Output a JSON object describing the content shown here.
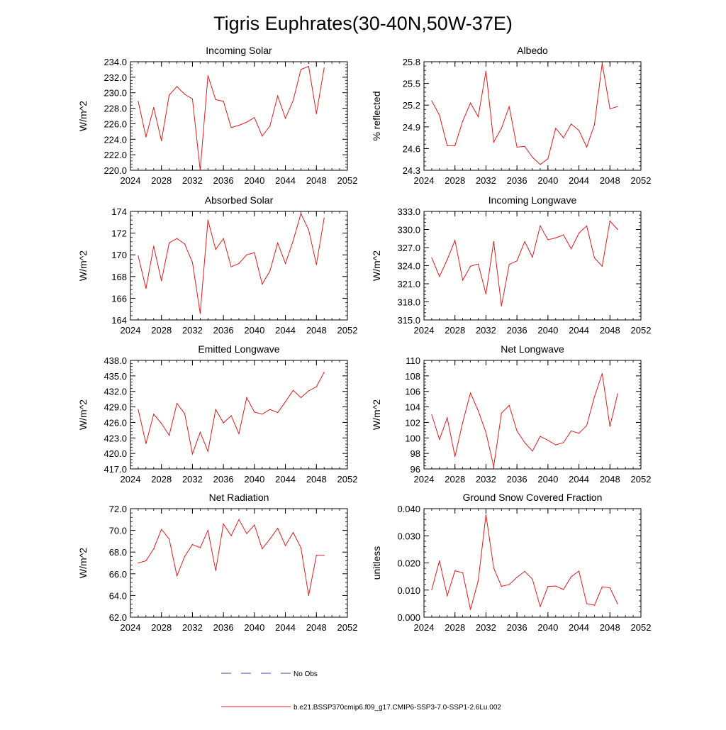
{
  "figure": {
    "title": "Tigris Euphrates(30-40N,50W-37E)",
    "line_color": "#e41a1c",
    "obs_color": "#4a4aa8"
  },
  "legend": {
    "obs_label": "No Obs",
    "model_label": "b.e21.BSSP370cmip6.f09_g17.CMIP6-SSP3-7.0-SSP1-2.6Lu.002"
  },
  "chart_data": [
    {
      "type": "line",
      "title": "Incoming Solar",
      "ylabel": "W/m^2",
      "xlim": [
        2024,
        2052
      ],
      "xticks": [
        2024,
        2028,
        2032,
        2036,
        2040,
        2044,
        2048,
        2052
      ],
      "ylim": [
        220,
        234
      ],
      "yticks": [
        "220.0",
        "222.0",
        "224.0",
        "226.0",
        "228.0",
        "230.0",
        "232.0",
        "234.0"
      ],
      "x": [
        2025,
        2026,
        2027,
        2028,
        2029,
        2030,
        2031,
        2032,
        2033,
        2034,
        2035,
        2036,
        2037,
        2038,
        2039,
        2040,
        2041,
        2042,
        2043,
        2044,
        2045,
        2046,
        2047,
        2048,
        2049
      ],
      "y": [
        228.9,
        224.3,
        228.1,
        223.8,
        229.7,
        230.8,
        229.8,
        229.2,
        220.0,
        232.2,
        229.1,
        228.9,
        225.5,
        225.8,
        226.2,
        226.8,
        224.4,
        225.7,
        229.6,
        226.7,
        229.0,
        233.0,
        233.4,
        227.3,
        233.2
      ]
    },
    {
      "type": "line",
      "title": "Albedo",
      "ylabel": "% reflected",
      "xlim": [
        2024,
        2052
      ],
      "xticks": [
        2024,
        2028,
        2032,
        2036,
        2040,
        2044,
        2048,
        2052
      ],
      "ylim": [
        24.3,
        25.8
      ],
      "yticks": [
        "24.3",
        "24.6",
        "24.9",
        "25.2",
        "25.5",
        "25.8"
      ],
      "x": [
        2025,
        2026,
        2027,
        2028,
        2029,
        2030,
        2031,
        2032,
        2033,
        2034,
        2035,
        2036,
        2037,
        2038,
        2039,
        2040,
        2041,
        2042,
        2043,
        2044,
        2045,
        2046,
        2047,
        2048,
        2049
      ],
      "y": [
        25.26,
        25.06,
        24.64,
        24.64,
        24.98,
        25.23,
        25.04,
        25.67,
        24.69,
        24.88,
        25.18,
        24.62,
        24.63,
        24.48,
        24.38,
        24.46,
        24.88,
        24.75,
        24.94,
        24.85,
        24.62,
        24.93,
        25.78,
        25.15,
        25.18
      ]
    },
    {
      "type": "line",
      "title": "Absorbed Solar",
      "ylabel": "W/m^2",
      "xlim": [
        2024,
        2052
      ],
      "xticks": [
        2024,
        2028,
        2032,
        2036,
        2040,
        2044,
        2048,
        2052
      ],
      "ylim": [
        164,
        174
      ],
      "yticks": [
        "164",
        "166",
        "168",
        "170",
        "172",
        "174"
      ],
      "x": [
        2025,
        2026,
        2027,
        2028,
        2029,
        2030,
        2031,
        2032,
        2033,
        2034,
        2035,
        2036,
        2037,
        2038,
        2039,
        2040,
        2041,
        2042,
        2043,
        2044,
        2045,
        2046,
        2047,
        2048,
        2049
      ],
      "y": [
        169.9,
        166.9,
        170.8,
        167.6,
        171.1,
        171.5,
        171.0,
        169.3,
        164.6,
        173.2,
        170.5,
        171.5,
        168.9,
        169.2,
        170.0,
        170.2,
        167.3,
        168.5,
        171.1,
        169.2,
        171.3,
        173.8,
        172.3,
        169.1,
        173.4
      ]
    },
    {
      "type": "line",
      "title": "Incoming Longwave",
      "ylabel": "W/m^2",
      "xlim": [
        2024,
        2052
      ],
      "xticks": [
        2024,
        2028,
        2032,
        2036,
        2040,
        2044,
        2048,
        2052
      ],
      "ylim": [
        315,
        333
      ],
      "yticks": [
        "315.0",
        "318.0",
        "321.0",
        "324.0",
        "327.0",
        "330.0",
        "333.0"
      ],
      "x": [
        2025,
        2026,
        2027,
        2028,
        2029,
        2030,
        2031,
        2032,
        2033,
        2034,
        2035,
        2036,
        2037,
        2038,
        2039,
        2040,
        2041,
        2042,
        2043,
        2044,
        2045,
        2046,
        2047,
        2048,
        2049
      ],
      "y": [
        325.3,
        322.2,
        325.0,
        328.2,
        321.6,
        323.9,
        324.3,
        319.3,
        328.0,
        317.3,
        324.2,
        324.8,
        328.0,
        325.4,
        330.6,
        328.3,
        328.6,
        329.1,
        326.8,
        329.4,
        330.6,
        325.3,
        323.9,
        331.4,
        330.0
      ]
    },
    {
      "type": "line",
      "title": "Emitted Longwave",
      "ylabel": "W/m^2",
      "xlim": [
        2024,
        2052
      ],
      "xticks": [
        2024,
        2028,
        2032,
        2036,
        2040,
        2044,
        2048,
        2052
      ],
      "ylim": [
        417,
        438
      ],
      "yticks": [
        "417.0",
        "420.0",
        "423.0",
        "426.0",
        "429.0",
        "432.0",
        "435.0",
        "438.0"
      ],
      "x": [
        2025,
        2026,
        2027,
        2028,
        2029,
        2030,
        2031,
        2032,
        2033,
        2034,
        2035,
        2036,
        2037,
        2038,
        2039,
        2040,
        2041,
        2042,
        2043,
        2044,
        2045,
        2046,
        2047,
        2048,
        2049
      ],
      "y": [
        428.5,
        421.9,
        427.6,
        425.8,
        423.5,
        429.7,
        427.7,
        419.9,
        424.1,
        420.4,
        428.5,
        425.9,
        427.3,
        423.8,
        430.8,
        428.0,
        427.6,
        428.5,
        427.9,
        430.0,
        432.2,
        430.8,
        432.1,
        432.9,
        435.7
      ]
    },
    {
      "type": "line",
      "title": "Net Longwave",
      "ylabel": "W/m^2",
      "xlim": [
        2024,
        2052
      ],
      "xticks": [
        2024,
        2028,
        2032,
        2036,
        2040,
        2044,
        2048,
        2052
      ],
      "ylim": [
        96,
        110
      ],
      "yticks": [
        "96",
        "98",
        "100",
        "102",
        "104",
        "106",
        "108",
        "110"
      ],
      "x": [
        2025,
        2026,
        2027,
        2028,
        2029,
        2030,
        2031,
        2032,
        2033,
        2034,
        2035,
        2036,
        2037,
        2038,
        2039,
        2040,
        2041,
        2042,
        2043,
        2044,
        2045,
        2046,
        2047,
        2048,
        2049
      ],
      "y": [
        103.0,
        99.8,
        102.6,
        97.6,
        102.0,
        105.8,
        103.5,
        100.7,
        96.3,
        103.2,
        104.2,
        100.9,
        99.4,
        98.3,
        100.2,
        99.7,
        99.1,
        99.4,
        100.9,
        100.6,
        101.6,
        105.3,
        108.3,
        101.5,
        105.7
      ]
    },
    {
      "type": "line",
      "title": "Net Radiation",
      "ylabel": "W/m^2",
      "xlim": [
        2024,
        2052
      ],
      "xticks": [
        2024,
        2028,
        2032,
        2036,
        2040,
        2044,
        2048,
        2052
      ],
      "ylim": [
        62,
        72
      ],
      "yticks": [
        "62.0",
        "64.0",
        "66.0",
        "68.0",
        "70.0",
        "72.0"
      ],
      "x": [
        2025,
        2026,
        2027,
        2028,
        2029,
        2030,
        2031,
        2032,
        2033,
        2034,
        2035,
        2036,
        2037,
        2038,
        2039,
        2040,
        2041,
        2042,
        2043,
        2044,
        2045,
        2046,
        2047,
        2048,
        2049
      ],
      "y": [
        67.0,
        67.2,
        68.3,
        70.1,
        69.2,
        65.8,
        67.6,
        68.7,
        68.4,
        70.0,
        66.3,
        70.6,
        69.5,
        71.0,
        69.7,
        70.5,
        68.3,
        69.2,
        70.2,
        68.6,
        69.8,
        68.4,
        64.0,
        67.7,
        67.7
      ]
    },
    {
      "type": "line",
      "title": "Ground Snow Covered Fraction",
      "ylabel": "unitless",
      "xlim": [
        2024,
        2052
      ],
      "xticks": [
        2024,
        2028,
        2032,
        2036,
        2040,
        2044,
        2048,
        2052
      ],
      "ylim": [
        0,
        0.04
      ],
      "yticks": [
        "0.000",
        "0.010",
        "0.020",
        "0.030",
        "0.040"
      ],
      "x": [
        2025,
        2026,
        2027,
        2028,
        2029,
        2030,
        2031,
        2032,
        2033,
        2034,
        2035,
        2036,
        2037,
        2038,
        2039,
        2040,
        2041,
        2042,
        2043,
        2044,
        2045,
        2046,
        2047,
        2048,
        2049
      ],
      "y": [
        0.0101,
        0.0208,
        0.0079,
        0.0171,
        0.0164,
        0.0028,
        0.0134,
        0.0378,
        0.0181,
        0.0114,
        0.012,
        0.0147,
        0.0169,
        0.014,
        0.0039,
        0.0113,
        0.0115,
        0.0102,
        0.0149,
        0.017,
        0.005,
        0.0044,
        0.0112,
        0.0108,
        0.0049
      ]
    }
  ]
}
